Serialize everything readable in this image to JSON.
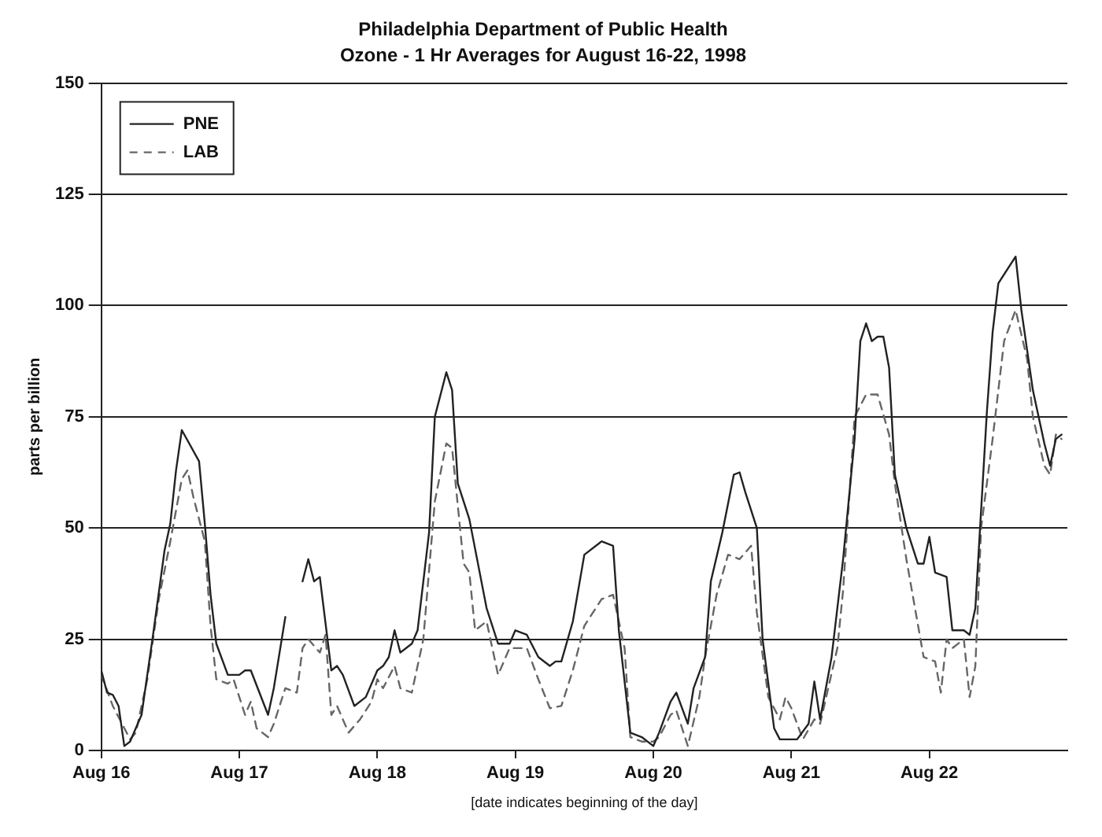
{
  "chart_data": {
    "type": "line",
    "title": "Philadelphia Department of Public Health",
    "subtitle": "Ozone - 1 Hr Averages for August 16-22, 1998",
    "xlabel": "[date indicates beginning of the day]",
    "ylabel": "parts per billion",
    "xlim": [
      "1998-08-16",
      "1998-08-23"
    ],
    "xticks": [
      {
        "value": "1998-08-16",
        "label": "Aug 16"
      },
      {
        "value": "1998-08-17",
        "label": "Aug 17"
      },
      {
        "value": "1998-08-18",
        "label": "Aug 18"
      },
      {
        "value": "1998-08-19",
        "label": "Aug 19"
      },
      {
        "value": "1998-08-20",
        "label": "Aug 20"
      },
      {
        "value": "1998-08-21",
        "label": "Aug 21"
      },
      {
        "value": "1998-08-22",
        "label": "Aug 22"
      }
    ],
    "ylim": [
      0,
      150
    ],
    "yticks": [
      0,
      25,
      50,
      75,
      100,
      125,
      150
    ],
    "grid": "y",
    "legend": "top left",
    "marker": "none",
    "series": [
      {
        "name": "PNE",
        "color": "#222222",
        "line_style": "solid",
        "x": [
          "1998-08-16T00:00",
          "1998-08-16T01:00",
          "1998-08-16T02:00",
          "1998-08-16T03:00",
          "1998-08-16T04:00",
          "1998-08-16T05:00",
          "1998-08-16T07:00",
          "1998-08-16T09:00",
          "1998-08-16T11:00",
          "1998-08-16T12:00",
          "1998-08-16T13:00",
          "1998-08-16T14:00",
          "1998-08-16T17:00",
          "1998-08-16T18:00",
          "1998-08-16T19:00",
          "1998-08-16T20:00",
          "1998-08-16T22:00",
          "1998-08-17T00:00",
          "1998-08-17T01:00",
          "1998-08-17T02:00",
          "1998-08-17T05:00",
          "1998-08-17T06:00",
          "1998-08-17T08:00",
          "1998-08-17T10:00",
          "1998-08-17T11:00",
          "1998-08-17T12:00",
          "1998-08-17T13:00",
          "1998-08-17T14:00",
          "1998-08-17T16:00",
          "1998-08-17T17:00",
          "1998-08-17T18:00",
          "1998-08-17T20:00",
          "1998-08-17T22:00",
          "1998-08-18T00:00",
          "1998-08-18T01:00",
          "1998-08-18T02:00",
          "1998-08-18T03:00",
          "1998-08-18T04:00",
          "1998-08-18T06:00",
          "1998-08-18T07:00",
          "1998-08-18T09:00",
          "1998-08-18T10:00",
          "1998-08-18T12:00",
          "1998-08-18T13:00",
          "1998-08-18T14:00",
          "1998-08-18T16:00",
          "1998-08-18T19:00",
          "1998-08-18T21:00",
          "1998-08-18T23:00",
          "1998-08-19T00:00",
          "1998-08-19T02:00",
          "1998-08-19T04:00",
          "1998-08-19T06:00",
          "1998-08-19T07:00",
          "1998-08-19T08:00",
          "1998-08-19T10:00",
          "1998-08-19T12:00",
          "1998-08-19T15:00",
          "1998-08-19T17:00",
          "1998-08-19T18:00",
          "1998-08-19T20:00",
          "1998-08-19T22:00",
          "1998-08-20T00:00",
          "1998-08-20T01:00",
          "1998-08-20T03:00",
          "1998-08-20T04:00",
          "1998-08-20T06:00",
          "1998-08-20T07:00",
          "1998-08-20T09:00",
          "1998-08-20T10:00",
          "1998-08-20T12:00",
          "1998-08-20T14:00",
          "1998-08-20T15:00",
          "1998-08-20T16:00",
          "1998-08-20T18:00",
          "1998-08-20T19:00",
          "1998-08-20T21:00",
          "1998-08-20T22:00",
          "1998-08-21T01:00",
          "1998-08-21T03:00",
          "1998-08-21T04:00",
          "1998-08-21T05:00",
          "1998-08-21T07:00",
          "1998-08-21T09:00",
          "1998-08-21T11:00",
          "1998-08-21T12:00",
          "1998-08-21T13:00",
          "1998-08-21T14:00",
          "1998-08-21T15:00",
          "1998-08-21T16:00",
          "1998-08-21T17:00",
          "1998-08-21T18:00",
          "1998-08-21T20:00",
          "1998-08-21T22:00",
          "1998-08-21T23:00",
          "1998-08-22T00:00",
          "1998-08-22T01:00",
          "1998-08-22T03:00",
          "1998-08-22T04:00",
          "1998-08-22T06:00",
          "1998-08-22T07:00",
          "1998-08-22T08:00",
          "1998-08-22T10:00",
          "1998-08-22T11:00",
          "1998-08-22T12:00",
          "1998-08-22T15:00",
          "1998-08-22T16:00",
          "1998-08-22T18:00",
          "1998-08-22T20:00",
          "1998-08-22T21:00",
          "1998-08-22T22:00",
          "1998-08-22T23:00"
        ],
        "values": [
          18,
          13,
          12.5,
          10,
          1,
          2,
          8,
          26,
          45,
          51,
          63,
          72,
          65,
          51,
          35,
          24,
          17,
          17,
          18,
          18,
          8,
          14,
          30,
          null,
          38,
          43,
          38,
          39,
          18,
          19,
          17,
          10,
          12,
          18,
          19,
          21,
          27,
          22,
          24,
          27,
          49,
          75,
          85,
          81,
          60,
          52,
          32,
          24,
          24,
          27,
          26,
          21,
          19,
          20,
          20,
          29,
          44,
          47,
          46,
          27,
          4,
          3,
          1,
          4,
          11,
          13,
          6,
          14,
          21,
          38,
          49,
          62,
          62.5,
          58,
          50,
          25,
          5,
          2.5,
          2.5,
          6,
          15.5,
          7,
          21,
          43,
          70,
          92,
          96,
          92,
          93,
          93,
          86,
          62,
          50,
          42,
          42,
          48,
          40,
          39,
          27,
          27,
          26,
          32,
          76,
          94,
          105,
          111,
          99,
          81,
          69,
          64,
          70,
          71
        ]
      },
      {
        "name": "LAB",
        "color": "#666666",
        "line_style": "dashed",
        "x": [
          "1998-08-16T00:00",
          "1998-08-16T02:00",
          "1998-08-16T05:00",
          "1998-08-16T06:00",
          "1998-08-16T08:00",
          "1998-08-16T10:00",
          "1998-08-16T12:00",
          "1998-08-16T14:00",
          "1998-08-16T15:00",
          "1998-08-16T16:00",
          "1998-08-16T18:00",
          "1998-08-16T19:00",
          "1998-08-16T20:00",
          "1998-08-16T22:00",
          "1998-08-16T23:00",
          "1998-08-17T01:00",
          "1998-08-17T02:00",
          "1998-08-17T03:00",
          "1998-08-17T05:00",
          "1998-08-17T06:00",
          "1998-08-17T08:00",
          "1998-08-17T10:00",
          "1998-08-17T11:00",
          "1998-08-17T12:00",
          "1998-08-17T14:00",
          "1998-08-17T15:00",
          "1998-08-17T16:00",
          "1998-08-17T17:00",
          "1998-08-17T19:00",
          "1998-08-17T21:00",
          "1998-08-17T23:00",
          "1998-08-18T00:00",
          "1998-08-18T01:00",
          "1998-08-18T03:00",
          "1998-08-18T04:00",
          "1998-08-18T06:00",
          "1998-08-18T08:00",
          "1998-08-18T10:00",
          "1998-08-18T12:00",
          "1998-08-18T13:00",
          "1998-08-18T15:00",
          "1998-08-18T16:00",
          "1998-08-18T17:00",
          "1998-08-18T19:00",
          "1998-08-18T21:00",
          "1998-08-18T23:00",
          "1998-08-19T02:00",
          "1998-08-19T04:00",
          "1998-08-19T06:00",
          "1998-08-19T08:00",
          "1998-08-19T10:00",
          "1998-08-19T12:00",
          "1998-08-19T15:00",
          "1998-08-19T17:00",
          "1998-08-19T19:00",
          "1998-08-19T20:00",
          "1998-08-19T22:00",
          "1998-08-20T00:00",
          "1998-08-20T01:00",
          "1998-08-20T03:00",
          "1998-08-20T04:00",
          "1998-08-20T06:00",
          "1998-08-20T08:00",
          "1998-08-20T09:00",
          "1998-08-20T11:00",
          "1998-08-20T13:00",
          "1998-08-20T15:00",
          "1998-08-20T17:00",
          "1998-08-20T18:00",
          "1998-08-20T20:00",
          "1998-08-20T22:00",
          "1998-08-20T23:00",
          "1998-08-21T00:00",
          "1998-08-21T02:00",
          "1998-08-21T04:00",
          "1998-08-21T05:00",
          "1998-08-21T08:00",
          "1998-08-21T09:00",
          "1998-08-21T11:00",
          "1998-08-21T13:00",
          "1998-08-21T15:00",
          "1998-08-21T17:00",
          "1998-08-21T18:00",
          "1998-08-21T20:00",
          "1998-08-21T23:00",
          "1998-08-22T01:00",
          "1998-08-22T02:00",
          "1998-08-22T03:00",
          "1998-08-22T04:00",
          "1998-08-22T06:00",
          "1998-08-22T07:00",
          "1998-08-22T08:00",
          "1998-08-22T09:00",
          "1998-08-22T11:00",
          "1998-08-22T13:00",
          "1998-08-22T15:00",
          "1998-08-22T17:00",
          "1998-08-22T18:00",
          "1998-08-22T20:00",
          "1998-08-22T21:00",
          "1998-08-22T22:00",
          "1998-08-22T23:00"
        ],
        "values": [
          17,
          10,
          2.5,
          4,
          16,
          34,
          47,
          61,
          63,
          57,
          47,
          28,
          16,
          15,
          16,
          8,
          11,
          5,
          3,
          6,
          14,
          13,
          23,
          25,
          22,
          26,
          8,
          10,
          4,
          7,
          11,
          16,
          14,
          19,
          14,
          13,
          25,
          56,
          69,
          68,
          42,
          40,
          27,
          29,
          17,
          23,
          23,
          16,
          9.5,
          10,
          18,
          28,
          34,
          35,
          23,
          3,
          2,
          2,
          3,
          8,
          9,
          1,
          12,
          21,
          35,
          44,
          43,
          46,
          31,
          12,
          7,
          12,
          9.5,
          2.5,
          7,
          6,
          23,
          36,
          75,
          80,
          80,
          71,
          60,
          43,
          21,
          20,
          13,
          25,
          23,
          25,
          12,
          19,
          50,
          70,
          92,
          99,
          88,
          75,
          64,
          62,
          71,
          70
        ]
      }
    ]
  }
}
